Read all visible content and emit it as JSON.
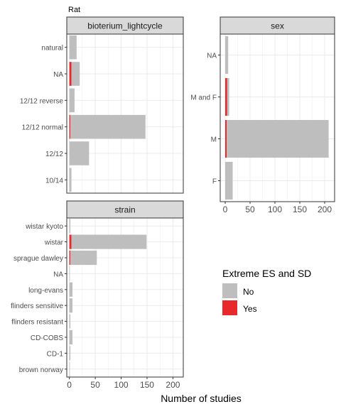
{
  "figure_title": "Rat",
  "xlabel": "Number of studies",
  "legend": {
    "title": "Extreme ES and SD",
    "placement": "right",
    "entries": [
      {
        "label": "No",
        "color": "#bebebe"
      },
      {
        "label": "Yes",
        "color": "#e8292b"
      }
    ]
  },
  "colors": {
    "no": "#bebebe",
    "yes": "#e8292b",
    "strip": "#d9d9d9",
    "grid": "#ebebeb"
  },
  "chart_data": [
    {
      "type": "bar",
      "orientation": "horizontal",
      "stacked": true,
      "title": "bioterium_lightcycle",
      "categories": [
        "natural",
        "NA",
        "12/12 reverse",
        "12/12 normal",
        "12/12",
        "10/14"
      ],
      "series": [
        {
          "name": "No",
          "values": [
            14,
            16,
            10,
            145,
            38,
            4
          ]
        },
        {
          "name": "Yes",
          "values": [
            0,
            4,
            0,
            2,
            0,
            0
          ]
        }
      ],
      "xlim": [
        -5,
        220
      ],
      "xticks": [
        0,
        50,
        100,
        150,
        200
      ],
      "show_xticks": false,
      "grid": true
    },
    {
      "type": "bar",
      "orientation": "horizontal",
      "stacked": true,
      "title": "sex",
      "categories": [
        "NA",
        "M and F",
        "M",
        "F"
      ],
      "series": [
        {
          "name": "No",
          "values": [
            6,
            4,
            205,
            15
          ]
        },
        {
          "name": "Yes",
          "values": [
            0,
            4,
            3,
            0
          ]
        }
      ],
      "xlim": [
        -10,
        220
      ],
      "xticks": [
        0,
        50,
        100,
        150,
        200
      ],
      "show_xticks": true,
      "grid": true
    },
    {
      "type": "bar",
      "orientation": "horizontal",
      "stacked": true,
      "title": "strain",
      "categories": [
        "wistar kyoto",
        "wistar",
        "sprague dawley",
        "NA",
        "long-evans",
        "flinders sensitive",
        "flinders resistant",
        "CD-COBS",
        "CD-1",
        "brown norway"
      ],
      "series": [
        {
          "name": "No",
          "values": [
            2,
            145,
            51,
            1,
            6,
            6,
            2,
            6,
            2,
            1
          ]
        },
        {
          "name": "Yes",
          "values": [
            0,
            4,
            2,
            0,
            0,
            0,
            0,
            0,
            0,
            0
          ]
        }
      ],
      "xlim": [
        -5,
        220
      ],
      "xticks": [
        0,
        50,
        100,
        150,
        200
      ],
      "show_xticks": true,
      "grid": true
    }
  ]
}
